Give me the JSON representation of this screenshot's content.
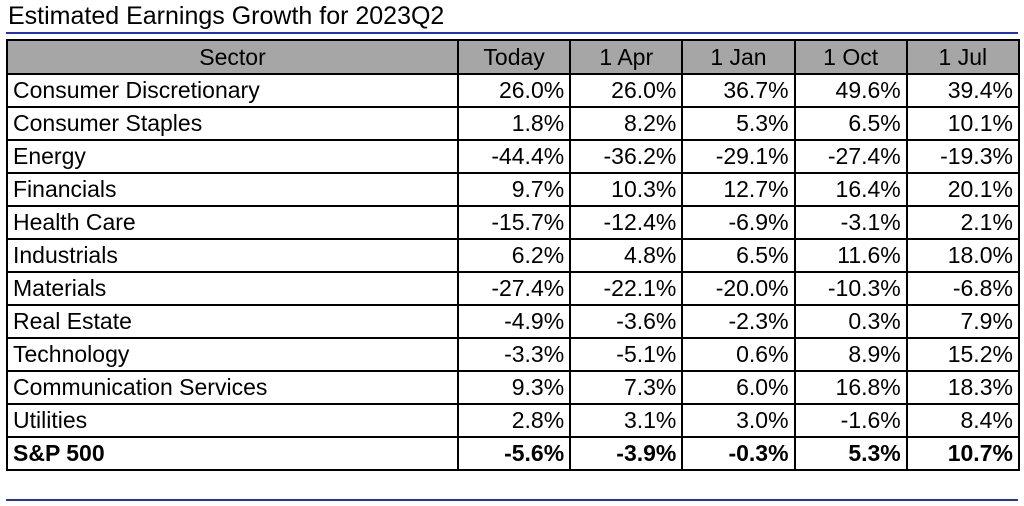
{
  "title": "Estimated Earnings Growth for 2023Q2",
  "table": {
    "headers": [
      "Sector",
      "Today",
      "1 Apr",
      "1 Jan",
      "1 Oct",
      "1 Jul"
    ],
    "rows": [
      {
        "sector": "Consumer Discretionary",
        "values": [
          "26.0%",
          "26.0%",
          "36.7%",
          "49.6%",
          "39.4%"
        ]
      },
      {
        "sector": "Consumer Staples",
        "values": [
          "1.8%",
          "8.2%",
          "5.3%",
          "6.5%",
          "10.1%"
        ]
      },
      {
        "sector": "Energy",
        "values": [
          "-44.4%",
          "-36.2%",
          "-29.1%",
          "-27.4%",
          "-19.3%"
        ]
      },
      {
        "sector": "Financials",
        "values": [
          "9.7%",
          "10.3%",
          "12.7%",
          "16.4%",
          "20.1%"
        ]
      },
      {
        "sector": "Health Care",
        "values": [
          "-15.7%",
          "-12.4%",
          "-6.9%",
          "-3.1%",
          "2.1%"
        ]
      },
      {
        "sector": "Industrials",
        "values": [
          "6.2%",
          "4.8%",
          "6.5%",
          "11.6%",
          "18.0%"
        ]
      },
      {
        "sector": "Materials",
        "values": [
          "-27.4%",
          "-22.1%",
          "-20.0%",
          "-10.3%",
          "-6.8%"
        ]
      },
      {
        "sector": "Real Estate",
        "values": [
          "-4.9%",
          "-3.6%",
          "-2.3%",
          "0.3%",
          "7.9%"
        ]
      },
      {
        "sector": "Technology",
        "values": [
          "-3.3%",
          "-5.1%",
          "0.6%",
          "8.9%",
          "15.2%"
        ]
      },
      {
        "sector": "Communication Services",
        "values": [
          "9.3%",
          "7.3%",
          "6.0%",
          "16.8%",
          "18.3%"
        ]
      },
      {
        "sector": "Utilities",
        "values": [
          "2.8%",
          "3.1%",
          "3.0%",
          "-1.6%",
          "8.4%"
        ]
      }
    ],
    "total": {
      "sector": "S&P 500",
      "values": [
        "-5.6%",
        "-3.9%",
        "-0.3%",
        "5.3%",
        "10.7%"
      ]
    }
  },
  "colors": {
    "header_background": "#a6a6a6",
    "rule": "#1f2fbf",
    "border": "#000000"
  }
}
